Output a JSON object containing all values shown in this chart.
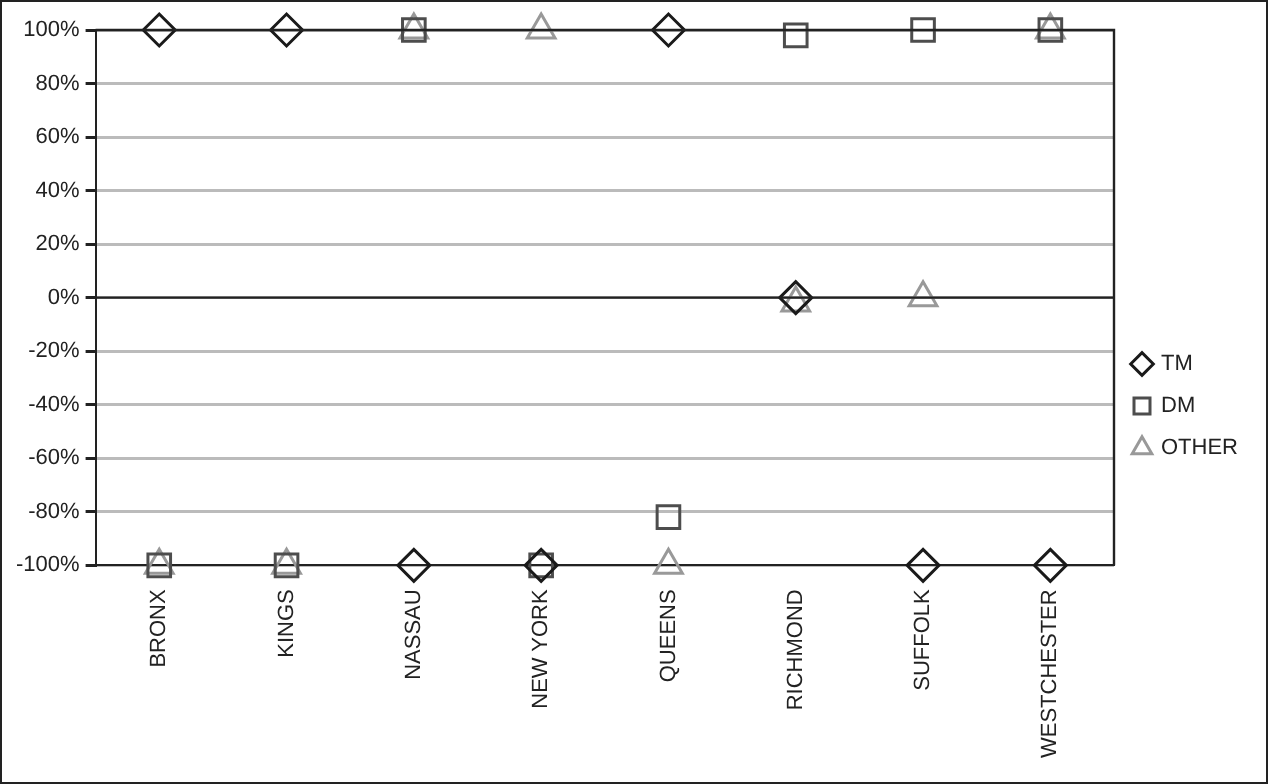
{
  "chart_data": {
    "type": "scatter",
    "categories": [
      "BRONX",
      "KINGS",
      "NASSAU",
      "NEW YORK",
      "QUEENS",
      "RICHMOND",
      "SUFFOLK",
      "WESTCHESTER"
    ],
    "series": [
      {
        "name": "TM",
        "color": "#1a1a1a",
        "marker": "diamond",
        "values": [
          100,
          100,
          -100,
          -100,
          100,
          0,
          -100,
          -100
        ]
      },
      {
        "name": "DM",
        "color": "#4d4d4d",
        "marker": "square",
        "values": [
          -100,
          -100,
          100,
          -100,
          -82,
          98,
          100,
          100
        ]
      },
      {
        "name": "OTHER",
        "color": "#999999",
        "marker": "triangle",
        "values": [
          -100,
          -100,
          100,
          100,
          -100,
          -2,
          0,
          100
        ]
      }
    ],
    "ylim": [
      -100,
      100
    ],
    "yticks": [
      {
        "value": -100,
        "label": "-100%"
      },
      {
        "value": -80,
        "label": "-80%"
      },
      {
        "value": -60,
        "label": "-60%"
      },
      {
        "value": -40,
        "label": "-40%"
      },
      {
        "value": -20,
        "label": "-20%"
      },
      {
        "value": 0,
        "label": "0%"
      },
      {
        "value": 20,
        "label": "20%"
      },
      {
        "value": 40,
        "label": "40%"
      },
      {
        "value": 60,
        "label": "60%"
      },
      {
        "value": 80,
        "label": "80%"
      },
      {
        "value": 100,
        "label": "100%"
      }
    ],
    "grid": "y",
    "legend": "right"
  }
}
